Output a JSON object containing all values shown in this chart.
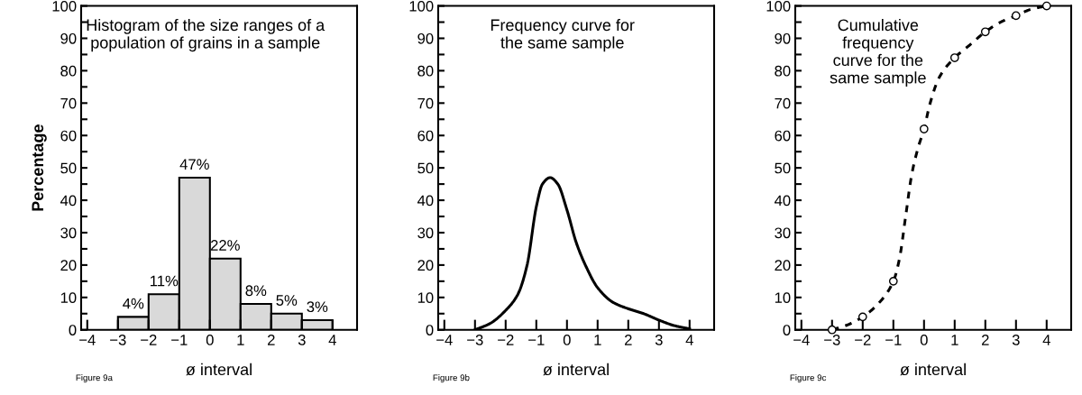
{
  "chart_data": [
    {
      "type": "histogram",
      "title": "Histogram of the size ranges of a\npopulation of grains in a sample",
      "xlabel": "ø interval",
      "ylabel": "Percentage",
      "annotations": [
        "Figure 9a"
      ],
      "bins": [
        -3,
        -2,
        -1,
        0,
        1,
        2,
        3,
        4
      ],
      "values": [
        4,
        11,
        47,
        22,
        8,
        5,
        3
      ],
      "color": "#d9d9d9",
      "value_labels": [
        "4%",
        "11%",
        "47%",
        "22%",
        "8%",
        "5%",
        "3%"
      ],
      "xlim": [
        -4.2,
        4.8
      ],
      "xticks": [
        -4,
        -3,
        -2,
        -1,
        0,
        1,
        2,
        3,
        4
      ],
      "ylim": [
        0,
        100
      ],
      "yticks": [
        0,
        {
          "value": 5,
          "label": null
        },
        10,
        {
          "value": 15,
          "label": null
        },
        20,
        {
          "value": 25,
          "label": null
        },
        30,
        {
          "value": 35,
          "label": null
        },
        40,
        {
          "value": 45,
          "label": null
        },
        50,
        {
          "value": 55,
          "label": null
        },
        60,
        {
          "value": 65,
          "label": null
        },
        70,
        {
          "value": 75,
          "label": null
        },
        80,
        {
          "value": 85,
          "label": null
        },
        90,
        {
          "value": 95,
          "label": null
        },
        100
      ],
      "grid": false
    },
    {
      "type": "line",
      "title": "Frequency curve for\nthe same sample",
      "xlabel": "ø interval",
      "annotations": [
        "Figure 9b"
      ],
      "series": [
        {
          "color": "#000000",
          "x": [
            -3,
            -2.5,
            -2,
            -1.6,
            -1.3,
            -1,
            -0.8,
            -0.55,
            -0.3,
            0,
            0.3,
            0.6,
            1,
            1.5,
            2,
            2.5,
            3,
            3.5,
            4
          ],
          "values": [
            0,
            2,
            6,
            11,
            20,
            38,
            45,
            47,
            45,
            37,
            27,
            20,
            13,
            8.5,
            6.5,
            5,
            3,
            1.3,
            0.3
          ]
        }
      ],
      "marker": "none",
      "line_style": "solid",
      "xlim": [
        -4.2,
        4.8
      ],
      "xticks": [
        -4,
        -3,
        -2,
        -1,
        0,
        1,
        2,
        3,
        4
      ],
      "ylim": [
        0,
        100
      ],
      "yticks": [
        0,
        {
          "value": 5,
          "label": null
        },
        10,
        {
          "value": 15,
          "label": null
        },
        20,
        {
          "value": 25,
          "label": null
        },
        30,
        {
          "value": 35,
          "label": null
        },
        40,
        {
          "value": 45,
          "label": null
        },
        50,
        {
          "value": 55,
          "label": null
        },
        60,
        {
          "value": 65,
          "label": null
        },
        70,
        {
          "value": 75,
          "label": null
        },
        80,
        {
          "value": 85,
          "label": null
        },
        90,
        {
          "value": 95,
          "label": null
        },
        100
      ],
      "grid": false
    },
    {
      "type": "line",
      "title": "Cumulative\nfrequency\ncurve for the\nsame sample",
      "xlabel": "ø interval",
      "annotations": [
        "Figure 9c"
      ],
      "series": [
        {
          "type": "line",
          "marker": "none",
          "color": "#000000",
          "x": [
            -3,
            -2.5,
            -2,
            -1.5,
            -1,
            -0.8,
            -0.6,
            -0.4,
            -0.2,
            0,
            0.2,
            0.5,
            1,
            1.5,
            2,
            2.5,
            3,
            3.5,
            4
          ],
          "values": [
            0,
            1.5,
            4,
            8,
            15,
            22,
            35,
            48,
            56,
            62,
            70,
            78,
            84,
            88,
            92,
            95,
            97,
            99,
            100
          ]
        },
        {
          "type": "scatter",
          "marker": "circle",
          "color": "#000000",
          "x": [
            -3,
            -2,
            -1,
            0,
            1,
            2,
            3,
            4
          ],
          "values": [
            0,
            4,
            15,
            62,
            84,
            92,
            97,
            100
          ]
        }
      ],
      "line_style": "dashed",
      "xlim": [
        -4.2,
        4.8
      ],
      "xticks": [
        -4,
        -3,
        -2,
        -1,
        0,
        1,
        2,
        3,
        4
      ],
      "ylim": [
        0,
        100
      ],
      "yticks": [
        0,
        {
          "value": 5,
          "label": null
        },
        10,
        {
          "value": 15,
          "label": null
        },
        20,
        {
          "value": 25,
          "label": null
        },
        30,
        {
          "value": 35,
          "label": null
        },
        40,
        {
          "value": 45,
          "label": null
        },
        50,
        {
          "value": 55,
          "label": null
        },
        60,
        {
          "value": 65,
          "label": null
        },
        70,
        {
          "value": 75,
          "label": null
        },
        80,
        {
          "value": 85,
          "label": null
        },
        90,
        {
          "value": 95,
          "label": null
        },
        100
      ],
      "grid": false
    }
  ]
}
